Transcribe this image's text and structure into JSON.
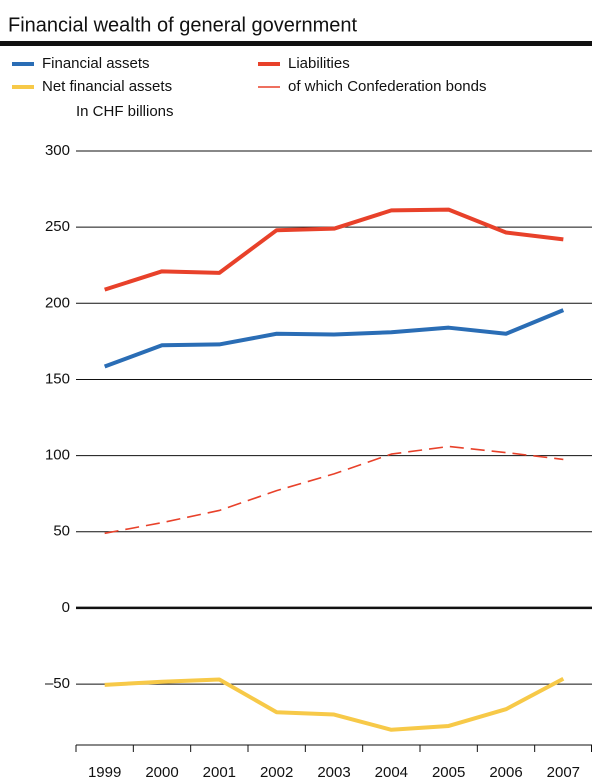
{
  "chart_data": {
    "type": "line",
    "title": "Financial wealth of general government",
    "y_label": "In CHF billions",
    "categories": [
      "1999",
      "2000",
      "2001",
      "2002",
      "2003",
      "2004",
      "2005",
      "2006",
      "2007"
    ],
    "series": [
      {
        "name": "Financial assets",
        "color": "#2a6db5",
        "values": [
          158.5,
          172.5,
          173,
          180,
          179.5,
          181,
          184,
          180,
          195.5
        ]
      },
      {
        "name": "Liabilities",
        "color": "#e8412a",
        "values": [
          209,
          221,
          220,
          248,
          249,
          261,
          261.5,
          246.5,
          242
        ]
      },
      {
        "name": "Net financial assets",
        "color": "#f7c948",
        "values": [
          -50.5,
          -48.5,
          -47,
          -68.5,
          -70,
          -80,
          -77.5,
          -66.5,
          -46.5
        ]
      },
      {
        "name": "of which Confederation bonds",
        "color": "#e8412a",
        "dashed": true,
        "values": [
          49,
          56,
          64,
          77,
          88,
          101,
          106,
          102,
          97.5
        ]
      }
    ],
    "ylim": [
      -90,
      300
    ],
    "yticks": [
      {
        "value": -50,
        "label": "–50"
      },
      0,
      50,
      100,
      150,
      200,
      250,
      300
    ],
    "grid": true
  }
}
